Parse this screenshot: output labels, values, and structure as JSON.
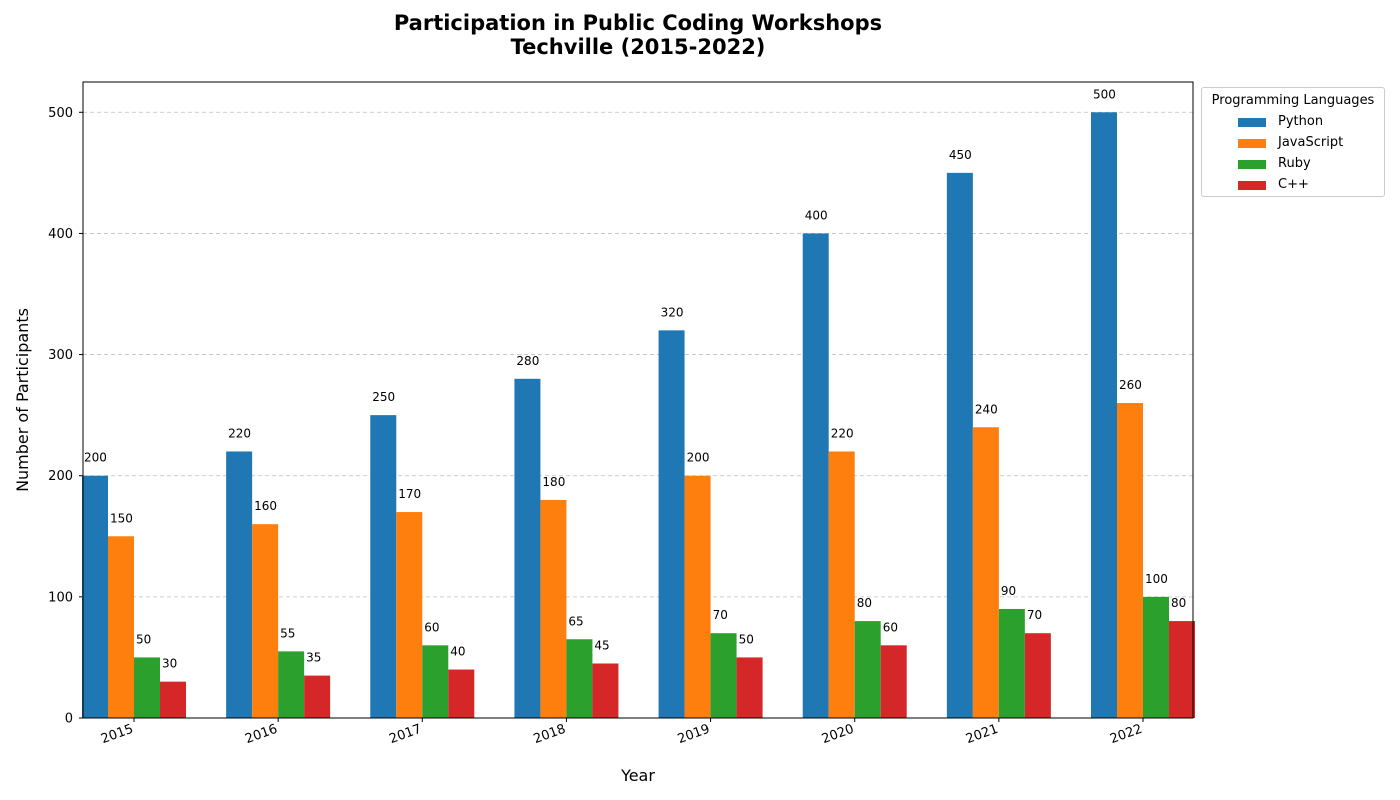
{
  "title_line1": "Participation in Public Coding Workshops",
  "title_line2": "Techville (2015-2022)",
  "chart_data": {
    "type": "bar",
    "title": "Participation in Public Coding Workshops Techville (2015-2022)",
    "xlabel": "Year",
    "ylabel": "Number of Participants",
    "ylim": [
      0,
      525
    ],
    "yticks": [
      0,
      100,
      200,
      300,
      400,
      500
    ],
    "grid": "y-dashed",
    "legend_title": "Programming Languages",
    "legend_position": "outside-top-right",
    "categories": [
      "2015",
      "2016",
      "2017",
      "2018",
      "2019",
      "2020",
      "2021",
      "2022"
    ],
    "series": [
      {
        "name": "Python",
        "color": "#1f77b4",
        "values": [
          200,
          220,
          250,
          280,
          320,
          400,
          450,
          500
        ]
      },
      {
        "name": "JavaScript",
        "color": "#ff7f0e",
        "values": [
          150,
          160,
          170,
          180,
          200,
          220,
          240,
          260
        ]
      },
      {
        "name": "Ruby",
        "color": "#2ca02c",
        "values": [
          50,
          55,
          60,
          65,
          70,
          80,
          90,
          100
        ]
      },
      {
        "name": "C++",
        "color": "#d62728",
        "values": [
          30,
          35,
          40,
          45,
          50,
          60,
          70,
          80
        ]
      }
    ]
  }
}
